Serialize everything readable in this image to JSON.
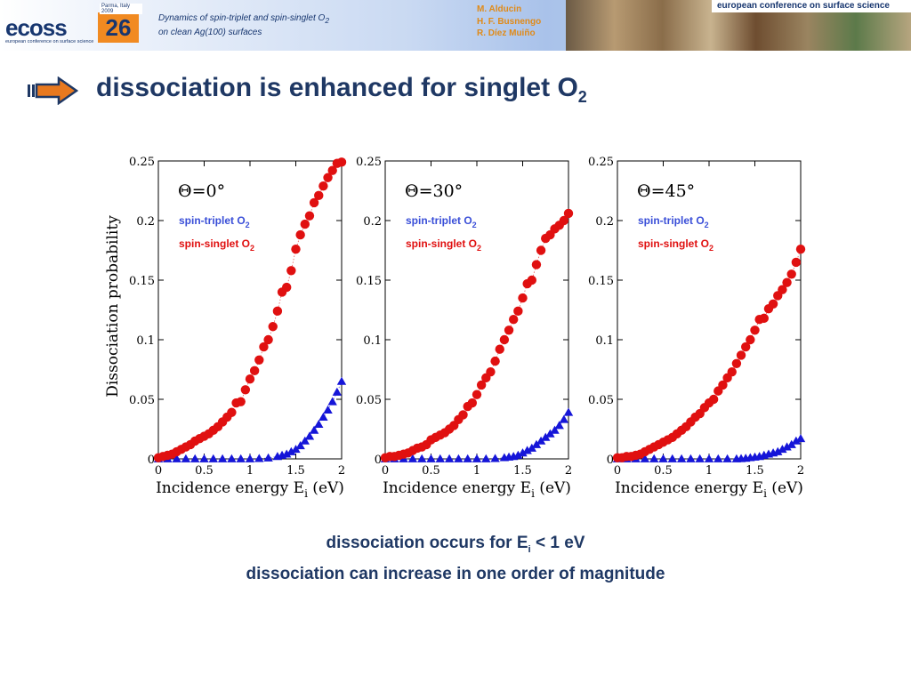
{
  "header": {
    "logo_word": "ecoss",
    "logo_number": "26",
    "logo_tag": "Parma, Italy 2009",
    "logo_subtitle": "european conference on surface science",
    "talk_title_line1": "Dynamics of spin-triplet and spin-singlet O",
    "talk_title_line1_sub": "2",
    "talk_title_line2": "on clean Ag(100) surfaces",
    "authors": [
      "M. Alducin",
      "H. F. Busnengo",
      "R. Díez Muiño"
    ],
    "conference_name": "european conference on surface science"
  },
  "slide": {
    "title_text": "dissociation is enhanced for singlet O",
    "title_sub": "2"
  },
  "captions": {
    "line1_text": "dissociation occurs for E",
    "line1_sub": "i",
    "line1_rest": " < 1 eV",
    "line2": "dissociation can increase in one order of magnitude"
  },
  "chart_data": [
    {
      "type": "scatter",
      "annotation": "Θ=0°",
      "ylabel": "Dissociation probability",
      "xlabel": "Incidence energy E",
      "xlabel_sub": "i",
      "xlabel_unit": "(eV)",
      "xlim": [
        0,
        2
      ],
      "ylim": [
        0,
        0.25
      ],
      "xticks": [
        "0",
        "0.5",
        "1",
        "1.5",
        "2"
      ],
      "yticks": [
        "0",
        "0.05",
        "0.1",
        "0.15",
        "0.2",
        "0.25"
      ],
      "series": [
        {
          "name": "spin-triplet O2",
          "color": "#1515d8",
          "marker": "triangle",
          "x": [
            0,
            0.1,
            0.2,
            0.3,
            0.4,
            0.5,
            0.6,
            0.7,
            0.8,
            0.9,
            1.0,
            1.1,
            1.2,
            1.3,
            1.35,
            1.4,
            1.45,
            1.5,
            1.55,
            1.6,
            1.65,
            1.7,
            1.75,
            1.8,
            1.85,
            1.9,
            1.95,
            2.0
          ],
          "y": [
            0,
            0,
            0,
            0,
            0,
            0,
            0,
            0,
            0,
            0,
            0,
            0.0003,
            0.0008,
            0.002,
            0.003,
            0.004,
            0.006,
            0.008,
            0.011,
            0.015,
            0.019,
            0.024,
            0.029,
            0.035,
            0.041,
            0.048,
            0.056,
            0.065
          ]
        },
        {
          "name": "spin-singlet O2",
          "color": "#e01010",
          "marker": "circle",
          "x": [
            0,
            0.05,
            0.1,
            0.15,
            0.2,
            0.25,
            0.3,
            0.35,
            0.4,
            0.45,
            0.5,
            0.55,
            0.6,
            0.65,
            0.7,
            0.75,
            0.8,
            0.85,
            0.9,
            0.95,
            1.0,
            1.05,
            1.1,
            1.15,
            1.2,
            1.25,
            1.3,
            1.35,
            1.4,
            1.45,
            1.5,
            1.55,
            1.6,
            1.65,
            1.7,
            1.75,
            1.8,
            1.85,
            1.9,
            1.95,
            2.0
          ],
          "y": [
            0.001,
            0.002,
            0.003,
            0.004,
            0.006,
            0.008,
            0.01,
            0.012,
            0.015,
            0.017,
            0.019,
            0.021,
            0.024,
            0.027,
            0.031,
            0.035,
            0.039,
            0.047,
            0.048,
            0.058,
            0.067,
            0.074,
            0.083,
            0.094,
            0.1,
            0.111,
            0.124,
            0.14,
            0.144,
            0.158,
            0.176,
            0.188,
            0.197,
            0.204,
            0.215,
            0.221,
            0.229,
            0.236,
            0.242,
            0.248,
            0.249
          ]
        }
      ]
    },
    {
      "type": "scatter",
      "annotation": "Θ=30°",
      "xlabel": "Incidence energy E",
      "xlabel_sub": "i",
      "xlabel_unit": "(eV)",
      "xlim": [
        0,
        2
      ],
      "ylim": [
        0,
        0.25
      ],
      "xticks": [
        "0",
        "0.5",
        "1",
        "1.5",
        "2"
      ],
      "yticks": [
        "0",
        "0.05",
        "0.1",
        "0.15",
        "0.2",
        "0.25"
      ],
      "series": [
        {
          "name": "spin-triplet O2",
          "color": "#1515d8",
          "marker": "triangle",
          "x": [
            0,
            0.1,
            0.2,
            0.3,
            0.4,
            0.5,
            0.6,
            0.7,
            0.8,
            0.9,
            1.0,
            1.1,
            1.2,
            1.3,
            1.35,
            1.4,
            1.45,
            1.5,
            1.55,
            1.6,
            1.65,
            1.7,
            1.75,
            1.8,
            1.85,
            1.9,
            1.95,
            2.0
          ],
          "y": [
            0,
            0,
            0,
            0,
            0,
            0,
            0,
            0,
            0,
            0,
            0,
            0,
            0.0003,
            0.001,
            0.0015,
            0.002,
            0.003,
            0.005,
            0.007,
            0.009,
            0.012,
            0.015,
            0.018,
            0.021,
            0.024,
            0.028,
            0.033,
            0.039
          ]
        },
        {
          "name": "spin-singlet O2",
          "color": "#e01010",
          "marker": "circle",
          "x": [
            0,
            0.05,
            0.1,
            0.15,
            0.2,
            0.25,
            0.3,
            0.35,
            0.4,
            0.45,
            0.5,
            0.55,
            0.6,
            0.65,
            0.7,
            0.75,
            0.8,
            0.85,
            0.9,
            0.95,
            1.0,
            1.05,
            1.1,
            1.15,
            1.2,
            1.25,
            1.3,
            1.35,
            1.4,
            1.45,
            1.5,
            1.55,
            1.6,
            1.65,
            1.7,
            1.75,
            1.8,
            1.85,
            1.9,
            1.95,
            2.0
          ],
          "y": [
            0.001,
            0.002,
            0.002,
            0.003,
            0.004,
            0.005,
            0.007,
            0.009,
            0.01,
            0.012,
            0.016,
            0.018,
            0.02,
            0.022,
            0.025,
            0.028,
            0.033,
            0.037,
            0.044,
            0.047,
            0.054,
            0.062,
            0.068,
            0.073,
            0.082,
            0.092,
            0.1,
            0.108,
            0.117,
            0.124,
            0.135,
            0.147,
            0.15,
            0.163,
            0.175,
            0.185,
            0.188,
            0.193,
            0.196,
            0.2,
            0.206
          ]
        }
      ]
    },
    {
      "type": "scatter",
      "annotation": "Θ=45°",
      "xlabel": "Incidence energy E",
      "xlabel_sub": "i",
      "xlabel_unit": "(eV)",
      "xlim": [
        0,
        2
      ],
      "ylim": [
        0,
        0.25
      ],
      "xticks": [
        "0",
        "0.5",
        "1",
        "1.5",
        "2"
      ],
      "yticks": [
        "0",
        "0.05",
        "0.1",
        "0.15",
        "0.2",
        "0.25"
      ],
      "series": [
        {
          "name": "spin-triplet O2",
          "color": "#1515d8",
          "marker": "triangle",
          "x": [
            0,
            0.1,
            0.2,
            0.3,
            0.4,
            0.5,
            0.6,
            0.7,
            0.8,
            0.9,
            1.0,
            1.1,
            1.2,
            1.3,
            1.35,
            1.4,
            1.45,
            1.5,
            1.55,
            1.6,
            1.65,
            1.7,
            1.75,
            1.8,
            1.85,
            1.9,
            1.95,
            2.0
          ],
          "y": [
            0,
            0,
            0,
            0,
            0,
            0,
            0,
            0,
            0,
            0,
            0,
            0,
            0,
            0,
            0.0002,
            0.0005,
            0.001,
            0.0015,
            0.002,
            0.003,
            0.004,
            0.005,
            0.006,
            0.008,
            0.01,
            0.012,
            0.015,
            0.017
          ]
        },
        {
          "name": "spin-singlet O2",
          "color": "#e01010",
          "marker": "circle",
          "x": [
            0,
            0.05,
            0.1,
            0.15,
            0.2,
            0.25,
            0.3,
            0.35,
            0.4,
            0.45,
            0.5,
            0.55,
            0.6,
            0.65,
            0.7,
            0.75,
            0.8,
            0.85,
            0.9,
            0.95,
            1.0,
            1.05,
            1.1,
            1.15,
            1.2,
            1.25,
            1.3,
            1.35,
            1.4,
            1.45,
            1.5,
            1.55,
            1.6,
            1.65,
            1.7,
            1.75,
            1.8,
            1.85,
            1.9,
            1.95,
            2.0
          ],
          "y": [
            0.001,
            0.001,
            0.002,
            0.002,
            0.003,
            0.004,
            0.006,
            0.008,
            0.01,
            0.012,
            0.014,
            0.016,
            0.018,
            0.021,
            0.024,
            0.027,
            0.031,
            0.035,
            0.038,
            0.043,
            0.047,
            0.05,
            0.057,
            0.062,
            0.068,
            0.073,
            0.08,
            0.087,
            0.094,
            0.1,
            0.108,
            0.117,
            0.118,
            0.126,
            0.13,
            0.137,
            0.142,
            0.148,
            0.155,
            0.165,
            0.176
          ]
        }
      ]
    }
  ]
}
